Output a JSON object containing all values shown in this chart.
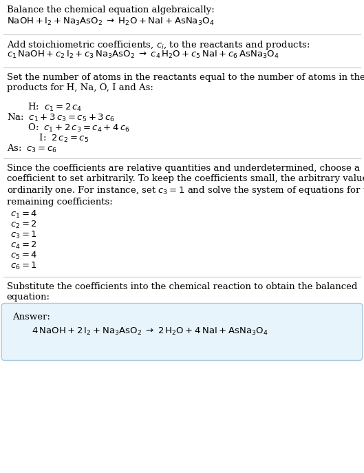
{
  "bg_color": "#ffffff",
  "text_color": "#000000",
  "answer_box_color": "#e8f4fb",
  "answer_box_edge": "#a8c8e0",
  "title1": "Balance the chemical equation algebraically:",
  "eq1": "$\\mathrm{NaOH + I_2 + Na_3AsO_2 \\;\\rightarrow\\; H_2O + NaI + AsNa_3O_4}$",
  "title2": "Add stoichiometric coefficients, $c_i$, to the reactants and products:",
  "eq2": "$c_1\\,\\mathrm{NaOH} + c_2\\,\\mathrm{I_2} + c_3\\,\\mathrm{Na_3AsO_2} \\;\\rightarrow\\; c_4\\,\\mathrm{H_2O} + c_5\\,\\mathrm{NaI} + c_6\\,\\mathrm{AsNa_3O_4}$",
  "title3": "Set the number of atoms in the reactants equal to the number of atoms in the\nproducts for H, Na, O, I and As:",
  "eq_H": "  H: $\\;c_1 = 2\\,c_4$",
  "eq_Na": "Na: $\\;c_1 + 3\\,c_3 = c_5 + 3\\,c_6$",
  "eq_O": "  O: $\\;c_1 + 2\\,c_3 = c_4 + 4\\,c_6$",
  "eq_I": "    I: $\\;2\\,c_2 = c_5$",
  "eq_As": "As: $\\;c_3 = c_6$",
  "title4": "Since the coefficients are relative quantities and underdetermined, choose a\ncoefficient to set arbitrarily. To keep the coefficients small, the arbitrary value is\nordinarily one. For instance, set $c_3 = 1$ and solve the system of equations for the\nremaining coefficients:",
  "sol1": "$c_1 = 4$",
  "sol2": "$c_2 = 2$",
  "sol3": "$c_3 = 1$",
  "sol4": "$c_4 = 2$",
  "sol5": "$c_5 = 4$",
  "sol6": "$c_6 = 1$",
  "title5": "Substitute the coefficients into the chemical reaction to obtain the balanced\nequation:",
  "answer_label": "Answer:",
  "answer_eq": "$4\\,\\mathrm{NaOH} + 2\\,\\mathrm{I_2} + \\mathrm{Na_3AsO_2} \\;\\rightarrow\\; 2\\,\\mathrm{H_2O} + 4\\,\\mathrm{NaI} + \\mathrm{AsNa_3O_4}$",
  "figsize": [
    5.29,
    6.87
  ],
  "dpi": 100
}
